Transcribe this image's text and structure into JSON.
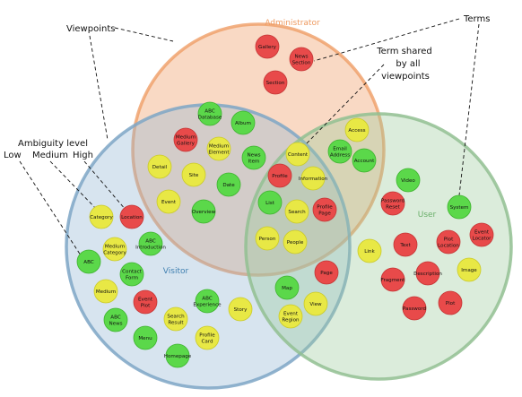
{
  "colors": {
    "low": "#e8e845",
    "medium": "#5bd84a",
    "high": "#e84a4a",
    "administrator": "#f0a472",
    "visitor": "#8fb5d4",
    "user": "#9cc99c"
  },
  "sets": [
    {
      "id": "administrator",
      "label": "Administrator",
      "color": "#ee9a60"
    },
    {
      "id": "visitor",
      "label": "Visitor",
      "color": "#3f7fb0"
    },
    {
      "id": "user",
      "label": "User",
      "color": "#6aaf6a"
    }
  ],
  "annotations": {
    "viewpoints": "Viewpoints",
    "terms": "Terms",
    "term_shared": [
      "Term shared",
      "by all",
      "viewpoints"
    ],
    "ambiguity_title": "Ambiguity level",
    "ambiguity_levels": [
      "Low",
      "Medium",
      "High"
    ]
  },
  "terms": [
    {
      "id": "gallery",
      "lines": [
        "Gallery"
      ],
      "level": "high"
    },
    {
      "id": "news-section",
      "lines": [
        "News",
        "Section"
      ],
      "level": "high"
    },
    {
      "id": "section",
      "lines": [
        "Section"
      ],
      "level": "high"
    },
    {
      "id": "abc-database",
      "lines": [
        "ABC",
        "Database"
      ],
      "level": "medium"
    },
    {
      "id": "album",
      "lines": [
        "Album"
      ],
      "level": "medium"
    },
    {
      "id": "medium-gallery",
      "lines": [
        "Medium",
        "Gallery"
      ],
      "level": "high"
    },
    {
      "id": "medium-element",
      "lines": [
        "Medium",
        "Element"
      ],
      "level": "low"
    },
    {
      "id": "news-item",
      "lines": [
        "News",
        "Item"
      ],
      "level": "medium"
    },
    {
      "id": "detail",
      "lines": [
        "Detail"
      ],
      "level": "low"
    },
    {
      "id": "site",
      "lines": [
        "Site"
      ],
      "level": "low"
    },
    {
      "id": "date",
      "lines": [
        "Date"
      ],
      "level": "medium"
    },
    {
      "id": "event",
      "lines": [
        "Event"
      ],
      "level": "low"
    },
    {
      "id": "overview",
      "lines": [
        "Overview"
      ],
      "level": "medium"
    },
    {
      "id": "access",
      "lines": [
        "Access"
      ],
      "level": "low"
    },
    {
      "id": "email-address",
      "lines": [
        "Email",
        "Address"
      ],
      "level": "medium"
    },
    {
      "id": "account",
      "lines": [
        "Account"
      ],
      "level": "medium"
    },
    {
      "id": "content",
      "lines": [
        "Content"
      ],
      "level": "low"
    },
    {
      "id": "profile",
      "lines": [
        "Profile"
      ],
      "level": "high"
    },
    {
      "id": "information",
      "lines": [
        "Information"
      ],
      "level": "low"
    },
    {
      "id": "list",
      "lines": [
        "List"
      ],
      "level": "medium"
    },
    {
      "id": "search",
      "lines": [
        "Search"
      ],
      "level": "low"
    },
    {
      "id": "profile-page",
      "lines": [
        "Profile",
        "Page"
      ],
      "level": "high"
    },
    {
      "id": "person",
      "lines": [
        "Person"
      ],
      "level": "low"
    },
    {
      "id": "people",
      "lines": [
        "People"
      ],
      "level": "low"
    },
    {
      "id": "category",
      "lines": [
        "Category"
      ],
      "level": "low"
    },
    {
      "id": "location",
      "lines": [
        "Location"
      ],
      "level": "high"
    },
    {
      "id": "medium-category",
      "lines": [
        "Medium",
        "Category"
      ],
      "level": "low"
    },
    {
      "id": "abc-introduction",
      "lines": [
        "ABC",
        "Introduction"
      ],
      "level": "medium"
    },
    {
      "id": "abc",
      "lines": [
        "ABC"
      ],
      "level": "medium"
    },
    {
      "id": "contact-form",
      "lines": [
        "Contact",
        "Form"
      ],
      "level": "medium"
    },
    {
      "id": "medium",
      "lines": [
        "Medium"
      ],
      "level": "low"
    },
    {
      "id": "event-plot",
      "lines": [
        "Event",
        "Plot"
      ],
      "level": "high"
    },
    {
      "id": "abc-experience",
      "lines": [
        "ABC",
        "Experience"
      ],
      "level": "medium"
    },
    {
      "id": "story",
      "lines": [
        "Story"
      ],
      "level": "low"
    },
    {
      "id": "abc-news",
      "lines": [
        "ABC",
        "News"
      ],
      "level": "medium"
    },
    {
      "id": "search-result",
      "lines": [
        "Search",
        "Result"
      ],
      "level": "low"
    },
    {
      "id": "menu",
      "lines": [
        "Menu"
      ],
      "level": "medium"
    },
    {
      "id": "profile-card",
      "lines": [
        "Profile",
        "Card"
      ],
      "level": "low"
    },
    {
      "id": "homepage",
      "lines": [
        "Homepage"
      ],
      "level": "medium"
    },
    {
      "id": "page",
      "lines": [
        "Page"
      ],
      "level": "high"
    },
    {
      "id": "map",
      "lines": [
        "Map"
      ],
      "level": "medium"
    },
    {
      "id": "view",
      "lines": [
        "View"
      ],
      "level": "low"
    },
    {
      "id": "event-region",
      "lines": [
        "Event",
        "Region"
      ],
      "level": "low"
    },
    {
      "id": "video",
      "lines": [
        "Video"
      ],
      "level": "medium"
    },
    {
      "id": "password-reset",
      "lines": [
        "Password",
        "Reset"
      ],
      "level": "high"
    },
    {
      "id": "system",
      "lines": [
        "System"
      ],
      "level": "medium"
    },
    {
      "id": "link",
      "lines": [
        "Link"
      ],
      "level": "low"
    },
    {
      "id": "text",
      "lines": [
        "Text"
      ],
      "level": "high"
    },
    {
      "id": "plot-location",
      "lines": [
        "Plot",
        "Location"
      ],
      "level": "high"
    },
    {
      "id": "event-locator",
      "lines": [
        "Event",
        "Locator"
      ],
      "level": "high"
    },
    {
      "id": "image",
      "lines": [
        "Image"
      ],
      "level": "low"
    },
    {
      "id": "fragment",
      "lines": [
        "Fragment"
      ],
      "level": "high"
    },
    {
      "id": "description",
      "lines": [
        "Description"
      ],
      "level": "high"
    },
    {
      "id": "password",
      "lines": [
        "Password"
      ],
      "level": "high"
    },
    {
      "id": "plot",
      "lines": [
        "Plot"
      ],
      "level": "high"
    }
  ]
}
